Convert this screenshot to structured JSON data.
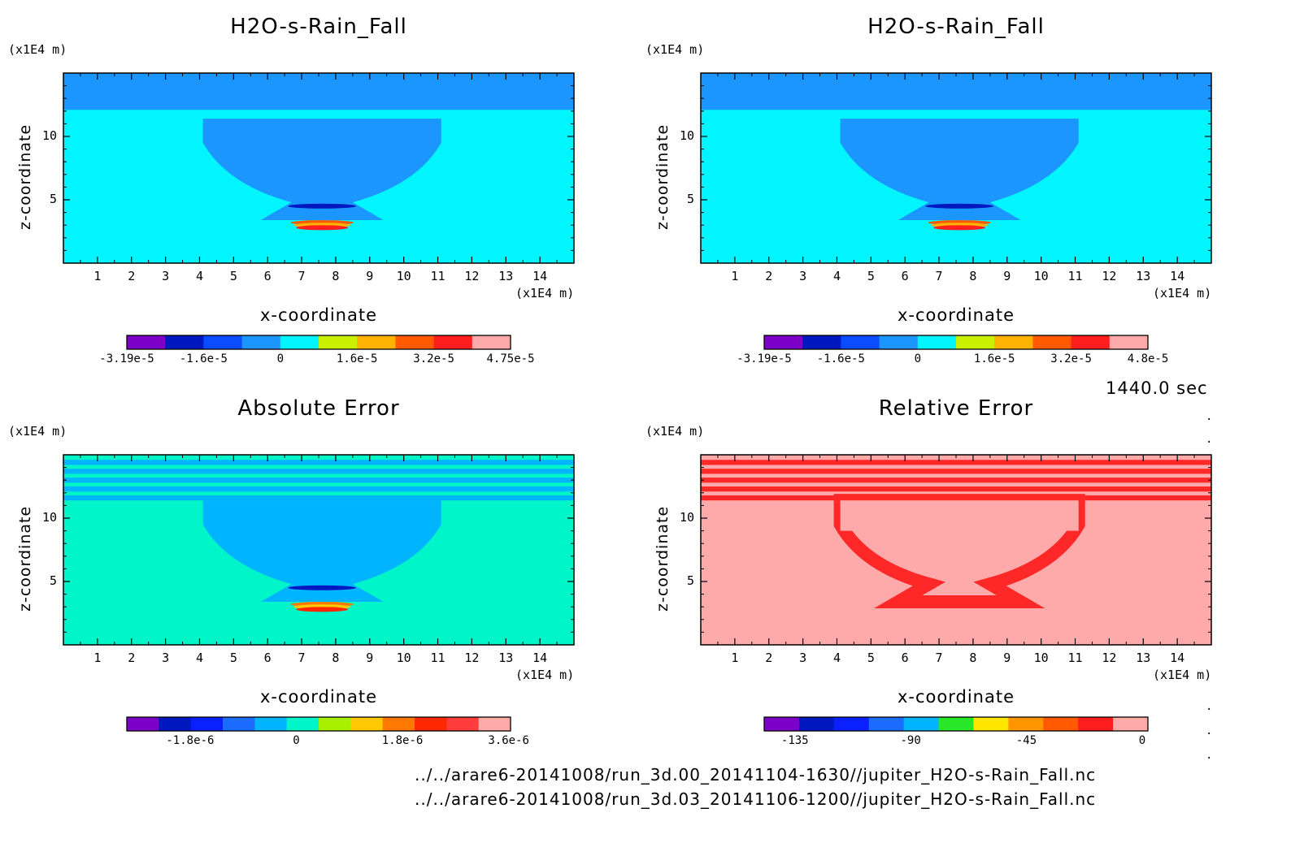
{
  "chart_data": [
    {
      "type": "heatmap",
      "title": "H2O-s-Rain_Fall",
      "xlabel": "x-coordinate",
      "ylabel": "z-coordinate",
      "x_unit": "(x1E4 m)",
      "z_unit": "(x1E4 m)",
      "x_ticks": [
        "1",
        "2",
        "3",
        "4",
        "5",
        "6",
        "7",
        "8",
        "9",
        "10",
        "11",
        "12",
        "13",
        "14"
      ],
      "z_ticks": [
        "5",
        "10"
      ],
      "xlim": [
        0,
        15
      ],
      "zlim": [
        0,
        15
      ],
      "colorbar": {
        "labels": [
          "-3.19e-5",
          "-1.6e-5",
          "0",
          "1.6e-5",
          "3.2e-5",
          "4.75e-5"
        ],
        "colors": [
          "#7c00c8",
          "#0018c0",
          "#0a4cff",
          "#1c96ff",
          "#00f5ff",
          "#c8f000",
          "#ffb200",
          "#ff5a00",
          "#ff1e1e",
          "#ffaaaa"
        ]
      },
      "colors": {
        "background": "#00f5ff",
        "top_band": "#1c96ff",
        "anvil": "#1c96ff",
        "layers": [
          "#0018c0",
          "#ff5a00",
          "#ffb200",
          "#ff1e1e"
        ]
      }
    },
    {
      "type": "heatmap",
      "title": "H2O-s-Rain_Fall",
      "xlabel": "x-coordinate",
      "ylabel": "z-coordinate",
      "x_unit": "(x1E4 m)",
      "z_unit": "(x1E4 m)",
      "x_ticks": [
        "1",
        "2",
        "3",
        "4",
        "5",
        "6",
        "7",
        "8",
        "9",
        "10",
        "11",
        "12",
        "13",
        "14"
      ],
      "z_ticks": [
        "5",
        "10"
      ],
      "xlim": [
        0,
        15
      ],
      "zlim": [
        0,
        15
      ],
      "colorbar": {
        "labels": [
          "-3.19e-5",
          "-1.6e-5",
          "0",
          "1.6e-5",
          "3.2e-5",
          "4.8e-5"
        ],
        "colors": [
          "#7c00c8",
          "#0018c0",
          "#0a4cff",
          "#1c96ff",
          "#00f5ff",
          "#c8f000",
          "#ffb200",
          "#ff5a00",
          "#ff1e1e",
          "#ffaaaa"
        ]
      },
      "colors": {
        "background": "#00f5ff",
        "top_band": "#1c96ff",
        "anvil": "#1c96ff",
        "layers": [
          "#0018c0",
          "#ff5a00",
          "#ffb200",
          "#ff1e1e"
        ]
      }
    },
    {
      "type": "heatmap",
      "title": "Absolute Error",
      "xlabel": "x-coordinate",
      "ylabel": "z-coordinate",
      "x_unit": "(x1E4 m)",
      "z_unit": "(x1E4 m)",
      "x_ticks": [
        "1",
        "2",
        "3",
        "4",
        "5",
        "6",
        "7",
        "8",
        "9",
        "10",
        "11",
        "12",
        "13",
        "14"
      ],
      "z_ticks": [
        "5",
        "10"
      ],
      "xlim": [
        0,
        15
      ],
      "zlim": [
        0,
        15
      ],
      "colorbar": {
        "labels": [
          "-1.8e-6",
          "0",
          "1.8e-6",
          "3.6e-6"
        ],
        "colors": [
          "#7c00c8",
          "#0018c0",
          "#0a20ff",
          "#1c6cff",
          "#00b4ff",
          "#00f5c8",
          "#a8f000",
          "#ffc800",
          "#ff7800",
          "#ff2800",
          "#ff3c3c",
          "#ffaaaa"
        ]
      },
      "colors": {
        "background": "#00f5c8",
        "top_band": "#00b4ff",
        "anvil": "#00b4ff",
        "layers": [
          "#0018c0",
          "#ff7800",
          "#ffc800",
          "#ff2800"
        ]
      }
    },
    {
      "type": "heatmap",
      "title": "Relative Error",
      "xlabel": "x-coordinate",
      "ylabel": "z-coordinate",
      "x_unit": "(x1E4 m)",
      "z_unit": "(x1E4 m)",
      "x_ticks": [
        "1",
        "2",
        "3",
        "4",
        "5",
        "6",
        "7",
        "8",
        "9",
        "10",
        "11",
        "12",
        "13",
        "14"
      ],
      "z_ticks": [
        "5",
        "10"
      ],
      "xlim": [
        0,
        15
      ],
      "zlim": [
        0,
        15
      ],
      "colorbar": {
        "labels": [
          "-135",
          "-90",
          "-45",
          "0"
        ],
        "colors": [
          "#7c00c8",
          "#0018c0",
          "#0a20ff",
          "#1c6cff",
          "#00b4ff",
          "#28e628",
          "#ffe600",
          "#ff9600",
          "#ff5a00",
          "#ff1e1e",
          "#ffaaaa"
        ]
      },
      "colors": {
        "background": "#ffaaaa",
        "top_band": "#ff2828",
        "anvil": "#ff2828"
      }
    }
  ],
  "time_label": "1440.0 sec",
  "files": [
    "../../arare6-20141008/run_3d.00_20141104-1630//jupiter_H2O-s-Rain_Fall.nc",
    "../../arare6-20141008/run_3d.03_20141106-1200//jupiter_H2O-s-Rain_Fall.nc"
  ]
}
